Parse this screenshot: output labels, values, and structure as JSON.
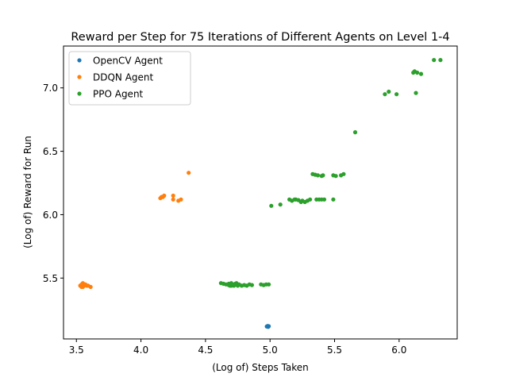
{
  "chart_data": {
    "type": "scatter",
    "title": "Reward per Step for 75 Iterations of Different Agents on Level 1-4",
    "xlabel": "(Log of) Steps Taken",
    "ylabel": "(Log of) Reward for Run",
    "xlim": [
      3.4,
      6.45
    ],
    "ylim": [
      5.02,
      7.33
    ],
    "xticks": [
      3.5,
      4.0,
      4.5,
      5.0,
      5.5,
      6.0
    ],
    "xtick_labels": [
      "3.5",
      "4.0",
      "4.5",
      "5.0",
      "5.5",
      "6.0"
    ],
    "yticks": [
      5.5,
      6.0,
      6.5,
      7.0
    ],
    "ytick_labels": [
      "5.5",
      "6.0",
      "6.5",
      "7.0"
    ],
    "grid": false,
    "legend_position": "top-left",
    "series": [
      {
        "name": "OpenCV Agent",
        "color": "#1f77b4",
        "points": [
          [
            4.98,
            5.12
          ],
          [
            4.985,
            5.115
          ],
          [
            4.99,
            5.12
          ],
          [
            4.975,
            5.118
          ],
          [
            4.982,
            5.122
          ]
        ]
      },
      {
        "name": "DDQN Agent",
        "color": "#ff7f0e",
        "points": [
          [
            3.53,
            5.44
          ],
          [
            3.54,
            5.45
          ],
          [
            3.55,
            5.43
          ],
          [
            3.56,
            5.44
          ],
          [
            3.57,
            5.45
          ],
          [
            3.58,
            5.44
          ],
          [
            3.55,
            5.46
          ],
          [
            3.59,
            5.44
          ],
          [
            3.61,
            5.43
          ],
          [
            3.54,
            5.43
          ],
          [
            4.15,
            6.13
          ],
          [
            4.16,
            6.14
          ],
          [
            4.17,
            6.14
          ],
          [
            4.18,
            6.15
          ],
          [
            4.25,
            6.15
          ],
          [
            4.25,
            6.12
          ],
          [
            4.29,
            6.11
          ],
          [
            4.31,
            6.12
          ],
          [
            4.37,
            6.33
          ]
        ]
      },
      {
        "name": "PPO Agent",
        "color": "#2ca02c",
        "points": [
          [
            4.62,
            5.46
          ],
          [
            4.64,
            5.455
          ],
          [
            4.66,
            5.45
          ],
          [
            4.68,
            5.455
          ],
          [
            4.69,
            5.44
          ],
          [
            4.7,
            5.46
          ],
          [
            4.71,
            5.45
          ],
          [
            4.72,
            5.44
          ],
          [
            4.73,
            5.455
          ],
          [
            4.74,
            5.45
          ],
          [
            4.75,
            5.44
          ],
          [
            4.76,
            5.45
          ],
          [
            4.78,
            5.44
          ],
          [
            4.8,
            5.445
          ],
          [
            4.82,
            5.44
          ],
          [
            4.84,
            5.45
          ],
          [
            4.86,
            5.445
          ],
          [
            4.93,
            5.45
          ],
          [
            4.95,
            5.445
          ],
          [
            4.97,
            5.45
          ],
          [
            4.99,
            5.45
          ],
          [
            4.7,
            5.44
          ],
          [
            4.74,
            5.46
          ],
          [
            4.68,
            5.445
          ],
          [
            5.01,
            6.07
          ],
          [
            5.08,
            6.08
          ],
          [
            5.15,
            6.12
          ],
          [
            5.17,
            6.11
          ],
          [
            5.19,
            6.12
          ],
          [
            5.2,
            6.12
          ],
          [
            5.22,
            6.115
          ],
          [
            5.24,
            6.1
          ],
          [
            5.25,
            6.11
          ],
          [
            5.27,
            6.1
          ],
          [
            5.29,
            6.11
          ],
          [
            5.31,
            6.12
          ],
          [
            5.36,
            6.12
          ],
          [
            5.38,
            6.12
          ],
          [
            5.4,
            6.12
          ],
          [
            5.42,
            6.12
          ],
          [
            5.49,
            6.12
          ],
          [
            5.33,
            6.32
          ],
          [
            5.35,
            6.315
          ],
          [
            5.37,
            6.31
          ],
          [
            5.4,
            6.305
          ],
          [
            5.41,
            6.31
          ],
          [
            5.49,
            6.31
          ],
          [
            5.51,
            6.305
          ],
          [
            5.55,
            6.31
          ],
          [
            5.57,
            6.32
          ],
          [
            5.66,
            6.65
          ],
          [
            5.89,
            6.95
          ],
          [
            5.92,
            6.97
          ],
          [
            5.98,
            6.95
          ],
          [
            6.11,
            7.12
          ],
          [
            6.12,
            7.13
          ],
          [
            6.14,
            7.12
          ],
          [
            6.17,
            7.11
          ],
          [
            6.13,
            6.96
          ],
          [
            6.27,
            7.22
          ],
          [
            6.32,
            7.22
          ]
        ]
      }
    ]
  }
}
